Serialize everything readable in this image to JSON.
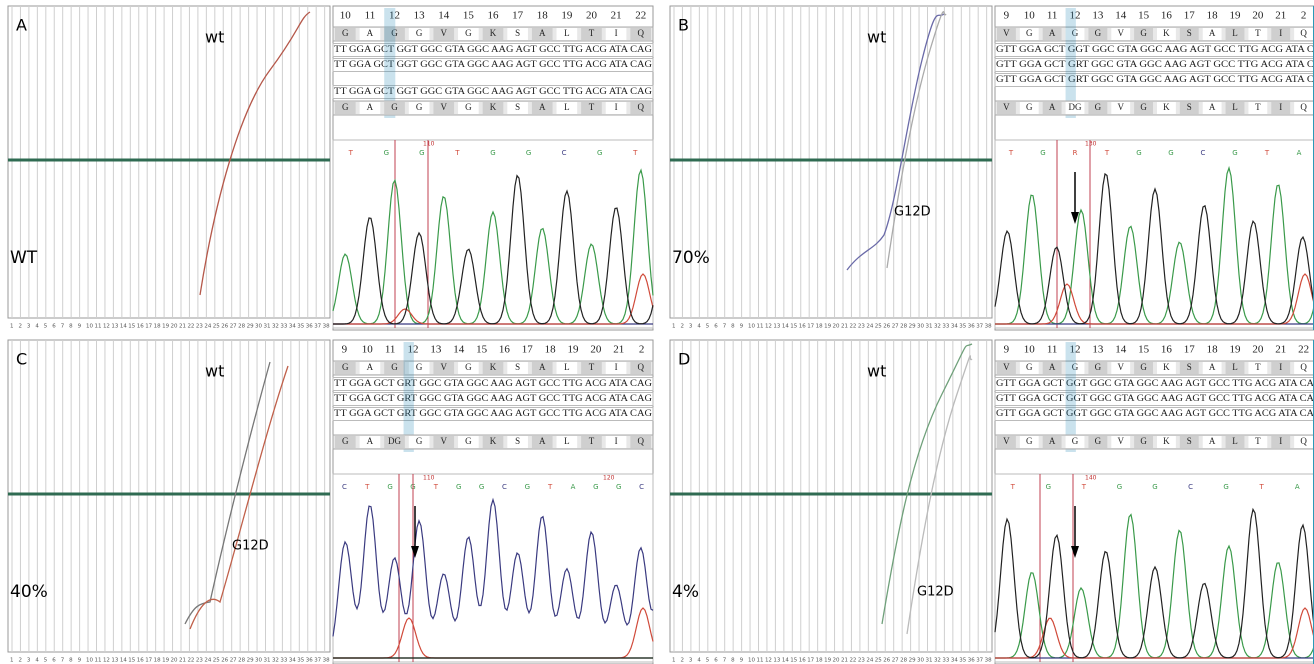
{
  "axis_numbers": [
    "1",
    "2",
    "3",
    "4",
    "5",
    "6",
    "7",
    "8",
    "9",
    "10",
    "11",
    "12",
    "13",
    "14",
    "15",
    "16",
    "17",
    "18",
    "19",
    "20",
    "21",
    "22",
    "23",
    "24",
    "25",
    "26",
    "27",
    "28",
    "29",
    "30",
    "31",
    "32",
    "33",
    "34",
    "35",
    "36",
    "37",
    "38"
  ],
  "panels": [
    {
      "letter": "A",
      "curve_label": "wt",
      "sample": "WT",
      "codons": [
        "10",
        "11",
        "12",
        "13",
        "14",
        "15",
        "16",
        "17",
        "18",
        "19",
        "20",
        "21",
        "22"
      ],
      "amino_top": [
        "G",
        "A",
        "G",
        "G",
        "V",
        "G",
        "K",
        "S",
        "A",
        "L",
        "T",
        "I",
        "Q"
      ],
      "dna": [
        "TT GGA GCT GGT GGC GTA GGC AAG AGT GCC TTG ACG ATA CAG",
        "TT GGA GCT GGT GGC GTA GGC AAG AGT GCC TTG ACG ATA CAG",
        "TT GGA GCT GGT GGC GTA GGC AAG AGT GCC TTG ACG ATA CAG"
      ],
      "amino_bottom": [
        "G",
        "A",
        "G",
        "G",
        "V",
        "G",
        "K",
        "S",
        "A",
        "L",
        "T",
        "I",
        "Q"
      ],
      "bases": [
        "T",
        "G",
        "G",
        "T",
        "G",
        "G",
        "C",
        "G",
        "T"
      ],
      "peak_labels": [
        "110"
      ]
    },
    {
      "letter": "B",
      "curve_label": "wt",
      "sample": "70%",
      "mutation": "G12D",
      "codons": [
        "9",
        "10",
        "11",
        "12",
        "13",
        "14",
        "15",
        "16",
        "17",
        "18",
        "19",
        "20",
        "21",
        "2"
      ],
      "amino_top": [
        "V",
        "G",
        "A",
        "G",
        "G",
        "V",
        "G",
        "K",
        "S",
        "A",
        "L",
        "T",
        "I",
        "Q"
      ],
      "dna": [
        "GTT GGA GCT GGT GGC GTA GGC AAG AGT GCC TTG ACG ATA C",
        "GTT GGA GCT GRT GGC GTA GGC AAG AGT GCC TTG ACG ATA C",
        "GTT GGA GCT GRT GGC GTA GGC AAG AGT GCC TTG ACG ATA C"
      ],
      "amino_bottom": [
        "V",
        "G",
        "A",
        "DG",
        "G",
        "V",
        "G",
        "K",
        "S",
        "A",
        "L",
        "T",
        "I",
        "Q"
      ],
      "bases": [
        "T",
        "G",
        "R",
        "T",
        "G",
        "G",
        "C",
        "G",
        "T",
        "A"
      ],
      "peak_labels": [
        "130"
      ]
    },
    {
      "letter": "C",
      "curve_label": "wt",
      "sample": "40%",
      "mutation": "G12D",
      "codons": [
        "9",
        "10",
        "11",
        "12",
        "13",
        "14",
        "15",
        "16",
        "17",
        "18",
        "19",
        "20",
        "21",
        "2"
      ],
      "amino_top": [
        "G",
        "A",
        "G",
        "G",
        "V",
        "G",
        "K",
        "S",
        "A",
        "L",
        "T",
        "I",
        "Q"
      ],
      "dna": [
        "TT GGA GCT GRT GGC GTA GGC AAG AGT GCC TTG ACG ATA CAG",
        "TT GGA GCT GRT GGC GTA GGC AAG AGT GCC TTG ACG ATA CAG",
        "TT GGA GCT GRT GGC GTA GGC AAG AGT GCC TTG ACG ATA CAG"
      ],
      "amino_bottom": [
        "G",
        "A",
        "DG",
        "G",
        "V",
        "G",
        "K",
        "S",
        "A",
        "L",
        "T",
        "I",
        "Q"
      ],
      "bases": [
        "C",
        "T",
        "G",
        "G",
        "T",
        "G",
        "G",
        "C",
        "G",
        "T",
        "A",
        "G",
        "G",
        "C"
      ],
      "peak_labels": [
        "110",
        "120"
      ]
    },
    {
      "letter": "D",
      "curve_label": "wt",
      "sample": "4%",
      "mutation": "G12D",
      "codons": [
        "9",
        "10",
        "11",
        "12",
        "13",
        "14",
        "15",
        "16",
        "17",
        "18",
        "19",
        "20",
        "21",
        "22"
      ],
      "amino_top": [
        "V",
        "G",
        "A",
        "G",
        "G",
        "V",
        "G",
        "K",
        "S",
        "A",
        "L",
        "T",
        "I",
        "Q"
      ],
      "dna": [
        "GTT GGA GCT GGT GGC GTA GGC AAG AGT GCC TTG ACG ATA CA",
        "GTT GGA GCT GGT GGC GTA GGC AAG AGT GCC TTG ACG ATA CA",
        "GTT GGA GCT GGT GGC GTA GGC AAG AGT GCC TTG ACG ATA CA"
      ],
      "amino_bottom": [
        "V",
        "G",
        "A",
        "G",
        "G",
        "V",
        "G",
        "K",
        "S",
        "A",
        "L",
        "T",
        "I",
        "Q"
      ],
      "bases": [
        "T",
        "G",
        "T",
        "G",
        "G",
        "C",
        "G",
        "T",
        "A"
      ],
      "peak_labels": [
        "140"
      ]
    }
  ]
}
